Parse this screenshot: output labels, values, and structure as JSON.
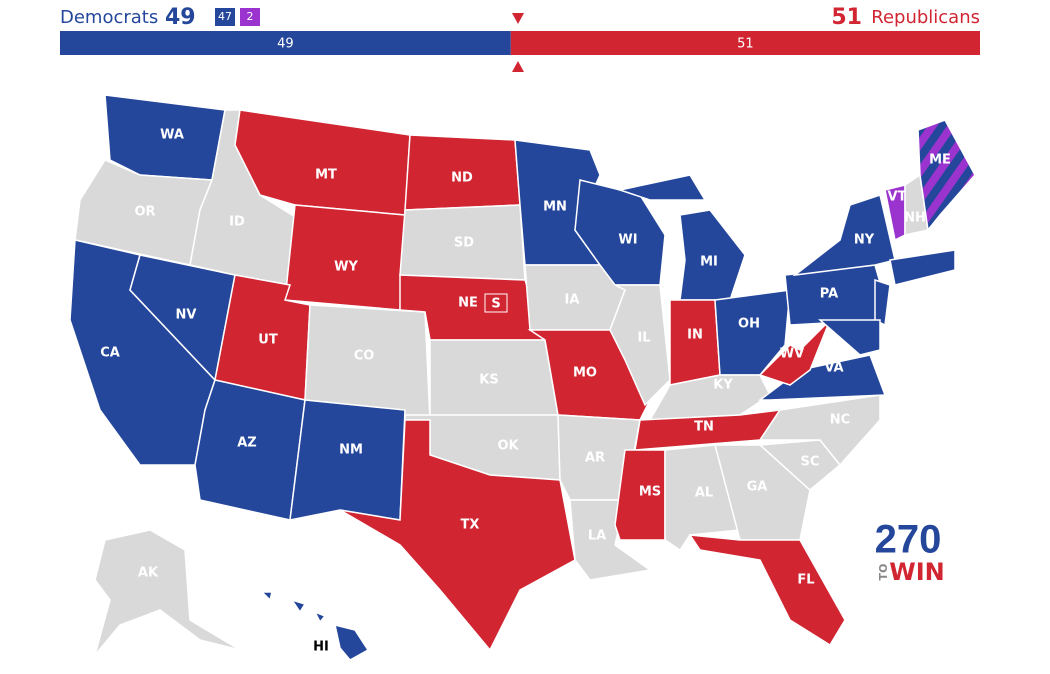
{
  "header": {
    "dem_label": "Democrats",
    "dem_total": 49,
    "dem_breakdown": [
      {
        "value": 47,
        "color": "#24479b"
      },
      {
        "value": 2,
        "color": "#9b34cf"
      }
    ],
    "rep_total": 51,
    "rep_label": "Republicans"
  },
  "bar": {
    "segments": [
      {
        "value": 49,
        "color": "#24479b"
      },
      {
        "value": 51,
        "color": "#d22532"
      }
    ]
  },
  "map": {
    "states": [
      {
        "label": "WA",
        "color": "#24479b"
      },
      {
        "label": "OR",
        "color": "#d9d9d9"
      },
      {
        "label": "CA",
        "color": "#24479b"
      },
      {
        "label": "NV",
        "color": "#24479b"
      },
      {
        "label": "ID",
        "color": "#d9d9d9"
      },
      {
        "label": "MT",
        "color": "#d22532"
      },
      {
        "label": "WY",
        "color": "#d22532"
      },
      {
        "label": "UT",
        "color": "#d22532"
      },
      {
        "label": "CO",
        "color": "#d9d9d9"
      },
      {
        "label": "AZ",
        "color": "#24479b"
      },
      {
        "label": "NM",
        "color": "#24479b"
      },
      {
        "label": "ND",
        "color": "#d22532"
      },
      {
        "label": "SD",
        "color": "#d9d9d9"
      },
      {
        "label": "NE",
        "color": "#d22532"
      },
      {
        "label": "KS",
        "color": "#d9d9d9"
      },
      {
        "label": "OK",
        "color": "#d9d9d9"
      },
      {
        "label": "TX",
        "color": "#d22532"
      },
      {
        "label": "MN",
        "color": "#24479b"
      },
      {
        "label": "IA",
        "color": "#d9d9d9"
      },
      {
        "label": "MO",
        "color": "#d22532"
      },
      {
        "label": "AR",
        "color": "#d9d9d9"
      },
      {
        "label": "LA",
        "color": "#d9d9d9"
      },
      {
        "label": "WI",
        "color": "#24479b"
      },
      {
        "label": "IL",
        "color": "#d9d9d9"
      },
      {
        "label": "MI",
        "color": "#24479b"
      },
      {
        "label": "IN",
        "color": "#d22532"
      },
      {
        "label": "OH",
        "color": "#24479b"
      },
      {
        "label": "KY",
        "color": "#d9d9d9"
      },
      {
        "label": "TN",
        "color": "#d22532"
      },
      {
        "label": "MS",
        "color": "#d22532"
      },
      {
        "label": "AL",
        "color": "#d9d9d9"
      },
      {
        "label": "GA",
        "color": "#d9d9d9"
      },
      {
        "label": "FL",
        "color": "#d22532"
      },
      {
        "label": "SC",
        "color": "#d9d9d9"
      },
      {
        "label": "NC",
        "color": "#d9d9d9"
      },
      {
        "label": "VA",
        "color": "#24479b"
      },
      {
        "label": "WV",
        "color": "#d22532"
      },
      {
        "label": "PA",
        "color": "#24479b"
      },
      {
        "label": "NY",
        "color": "#24479b"
      },
      {
        "label": null,
        "color": "#24479b"
      },
      {
        "label": null,
        "color": "#24479b"
      },
      {
        "label": null,
        "color": "#24479b"
      },
      {
        "label": "VT",
        "color": "#9b34cf"
      },
      {
        "label": "NH",
        "color": "#d9d9d9"
      },
      {
        "label": "ME",
        "color": "#24479b",
        "stripe": "#9b34cf"
      },
      {
        "label": "AK",
        "color": "#d9d9d9"
      },
      {
        "label": "HI",
        "color": "#24479b"
      }
    ],
    "ne_marker": "S"
  },
  "logo": {
    "number": "270",
    "small": "TO",
    "word": "WIN"
  }
}
